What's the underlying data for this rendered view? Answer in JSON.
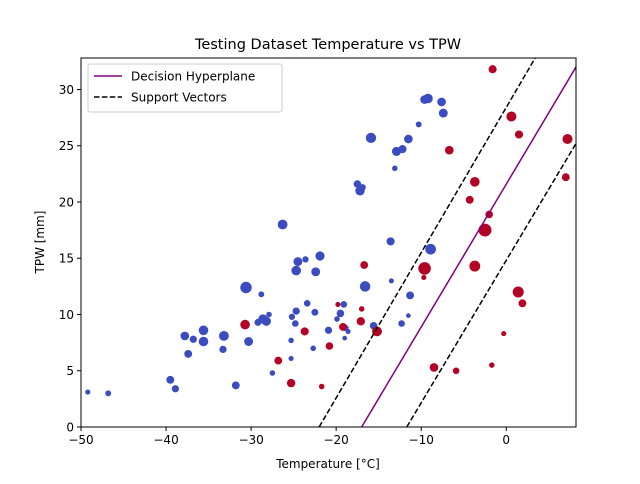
{
  "chart_data": {
    "type": "scatter",
    "title": "Testing Dataset Temperature vs TPW",
    "xlabel": "Temperature [°C]",
    "ylabel": "TPW [mm]",
    "xlim": [
      -50,
      8.2
    ],
    "ylim": [
      0,
      32.8
    ],
    "xticks": [
      -50,
      -40,
      -30,
      -20,
      -10,
      0
    ],
    "xtick_labels": [
      "−50",
      "−40",
      "−30",
      "−20",
      "−10",
      "0"
    ],
    "yticks": [
      0,
      5,
      10,
      15,
      20,
      25,
      30
    ],
    "ytick_labels": [
      "0",
      "5",
      "10",
      "15",
      "20",
      "25",
      "30"
    ],
    "grid": false,
    "legend_position": "top-left",
    "colors": {
      "class_a": "#3b4cc0",
      "class_b": "#b40426",
      "hyperplane": "#800080",
      "support": "#000000"
    },
    "lines": [
      {
        "name": "Decision Hyperplane",
        "style": "solid",
        "color": "#800080",
        "x": [
          -17.0,
          8.2
        ],
        "y": [
          0,
          32.0
        ]
      },
      {
        "name": "Support Vectors",
        "style": "dashed",
        "color": "#000000",
        "x": [
          -22.0,
          3.4
        ],
        "y": [
          0,
          32.8
        ]
      },
      {
        "name": "",
        "style": "dashed",
        "color": "#000000",
        "x": [
          -11.7,
          8.2
        ],
        "y": [
          0,
          25.2
        ]
      }
    ],
    "series": [
      {
        "class": "a",
        "color": "#3b4cc0",
        "points": [
          [
            -49.2,
            3.1,
            12
          ],
          [
            -46.8,
            3.0,
            16
          ],
          [
            -39.5,
            4.2,
            28
          ],
          [
            -38.9,
            3.4,
            24
          ],
          [
            -37.8,
            8.1,
            34
          ],
          [
            -37.4,
            6.5,
            28
          ],
          [
            -36.8,
            7.8,
            24
          ],
          [
            -35.6,
            8.6,
            42
          ],
          [
            -35.6,
            7.6,
            42
          ],
          [
            -33.2,
            8.1,
            44
          ],
          [
            -33.3,
            6.9,
            24
          ],
          [
            -31.8,
            3.7,
            28
          ],
          [
            -30.6,
            12.4,
            60
          ],
          [
            -30.3,
            7.6,
            36
          ],
          [
            -29.2,
            9.3,
            22
          ],
          [
            -28.8,
            11.8,
            16
          ],
          [
            -28.6,
            9.6,
            40
          ],
          [
            -28.2,
            9.4,
            38
          ],
          [
            -27.9,
            10.0,
            14
          ],
          [
            -27.5,
            4.8,
            14
          ],
          [
            -26.3,
            18.0,
            44
          ],
          [
            -25.3,
            7.7,
            14
          ],
          [
            -25.3,
            6.1,
            12
          ],
          [
            -25.2,
            9.8,
            18
          ],
          [
            -24.8,
            9.2,
            20
          ],
          [
            -24.7,
            10.3,
            24
          ],
          [
            -24.7,
            13.9,
            42
          ],
          [
            -24.5,
            14.7,
            36
          ],
          [
            -23.6,
            14.9,
            18
          ],
          [
            -23.4,
            11.0,
            20
          ],
          [
            -22.7,
            7.0,
            14
          ],
          [
            -22.5,
            10.2,
            22
          ],
          [
            -22.4,
            13.8,
            36
          ],
          [
            -21.9,
            15.2,
            38
          ],
          [
            -20.9,
            8.6,
            24
          ],
          [
            -19.9,
            9.6,
            14
          ],
          [
            -19.5,
            10.1,
            26
          ],
          [
            -19.1,
            10.9,
            20
          ],
          [
            -18.9,
            8.8,
            18
          ],
          [
            -18.6,
            8.5,
            12
          ],
          [
            -19.0,
            7.9,
            10
          ],
          [
            -17.5,
            21.6,
            26
          ],
          [
            -17.2,
            21.0,
            40
          ],
          [
            -16.9,
            21.3,
            20
          ],
          [
            -16.6,
            12.5,
            50
          ],
          [
            -15.9,
            25.7,
            48
          ],
          [
            -15.6,
            9.0,
            26
          ],
          [
            -13.6,
            16.5,
            30
          ],
          [
            -13.5,
            13.0,
            12
          ],
          [
            -13.1,
            23.0,
            14
          ],
          [
            -12.9,
            24.5,
            38
          ],
          [
            -12.2,
            24.7,
            30
          ],
          [
            -12.3,
            9.2,
            20
          ],
          [
            -11.5,
            25.6,
            34
          ],
          [
            -11.3,
            11.7,
            28
          ],
          [
            -11.5,
            9.9,
            10
          ],
          [
            -10.3,
            26.9,
            16
          ],
          [
            -9.6,
            29.1,
            34
          ],
          [
            -9.2,
            29.2,
            42
          ],
          [
            -8.9,
            15.8,
            52
          ],
          [
            -7.6,
            28.9,
            34
          ],
          [
            -7.4,
            27.9,
            36
          ]
        ]
      },
      {
        "class": "b",
        "color": "#b40426",
        "points": [
          [
            -30.7,
            9.1,
            42
          ],
          [
            -26.8,
            5.9,
            28
          ],
          [
            -25.3,
            3.9,
            32
          ],
          [
            -23.7,
            8.5,
            30
          ],
          [
            -21.7,
            3.6,
            14
          ],
          [
            -20.8,
            7.2,
            26
          ],
          [
            -19.8,
            10.9,
            12
          ],
          [
            -19.2,
            8.9,
            28
          ],
          [
            -17.1,
            9.4,
            32
          ],
          [
            -17.0,
            10.5,
            14
          ],
          [
            -16.7,
            14.4,
            28
          ],
          [
            -15.2,
            8.5,
            44
          ],
          [
            -9.6,
            14.1,
            72
          ],
          [
            -9.7,
            13.3,
            12
          ],
          [
            -8.5,
            5.3,
            34
          ],
          [
            -6.7,
            24.6,
            34
          ],
          [
            -5.9,
            5.0,
            20
          ],
          [
            -4.3,
            20.2,
            28
          ],
          [
            -3.7,
            21.8,
            42
          ],
          [
            -3.7,
            14.3,
            54
          ],
          [
            -2.5,
            17.5,
            76
          ],
          [
            -2.0,
            18.9,
            26
          ],
          [
            -1.7,
            5.5,
            14
          ],
          [
            -1.6,
            31.8,
            30
          ],
          [
            -0.3,
            8.3,
            12
          ],
          [
            0.6,
            27.6,
            46
          ],
          [
            1.4,
            12.0,
            56
          ],
          [
            1.5,
            26.0,
            30
          ],
          [
            1.9,
            11.0,
            28
          ],
          [
            7.0,
            22.2,
            28
          ],
          [
            7.2,
            25.6,
            46
          ]
        ]
      }
    ]
  }
}
